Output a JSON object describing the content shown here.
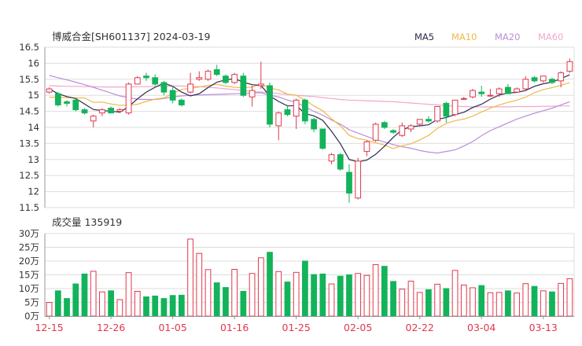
{
  "header": {
    "title": "博威合金[SH601137] 2024-03-19",
    "legend": [
      {
        "label": "MA5",
        "color": "#2b2b4d"
      },
      {
        "label": "MA10",
        "color": "#f0b84a"
      },
      {
        "label": "MA20",
        "color": "#b98fd8"
      },
      {
        "label": "MA60",
        "color": "#f2a6cf"
      }
    ]
  },
  "volume_panel": {
    "label": "成交量 135919"
  },
  "colors": {
    "up": "#e0384c",
    "down": "#13b35a",
    "grid": "#dddddd",
    "axis_text": "#333333",
    "date_text": "#e0384c"
  },
  "chart_data": [
    {
      "type": "candlestick",
      "name": "price",
      "ylim": [
        11.5,
        16.5
      ],
      "y_ticks": [
        "16.5",
        "16",
        "15.5",
        "15",
        "14.5",
        "14",
        "13.5",
        "13",
        "12.5",
        "12",
        "11.5"
      ],
      "x_ticks": [
        "12-15",
        "12-26",
        "01-05",
        "01-16",
        "01-25",
        "02-05",
        "02-22",
        "03-04",
        "03-13"
      ],
      "x_tick_index": [
        0,
        7,
        14,
        21,
        28,
        35,
        42,
        49,
        56
      ],
      "ohlc": [
        [
          15.1,
          15.25,
          15.05,
          15.2
        ],
        [
          15.05,
          15.1,
          14.65,
          14.7
        ],
        [
          14.8,
          14.85,
          14.65,
          14.75
        ],
        [
          14.85,
          14.9,
          14.5,
          14.55
        ],
        [
          14.55,
          14.6,
          14.4,
          14.45
        ],
        [
          14.2,
          14.4,
          14.0,
          14.35
        ],
        [
          14.45,
          14.6,
          14.35,
          14.55
        ],
        [
          14.6,
          14.65,
          14.45,
          14.45
        ],
        [
          14.5,
          14.6,
          14.45,
          14.55
        ],
        [
          14.45,
          15.4,
          14.4,
          15.35
        ],
        [
          15.35,
          15.6,
          15.35,
          15.55
        ],
        [
          15.6,
          15.7,
          15.45,
          15.55
        ],
        [
          15.55,
          15.65,
          15.3,
          15.35
        ],
        [
          15.4,
          15.45,
          15.0,
          15.1
        ],
        [
          15.15,
          15.3,
          14.75,
          14.85
        ],
        [
          14.85,
          14.9,
          14.65,
          14.7
        ],
        [
          15.1,
          15.7,
          15.05,
          15.35
        ],
        [
          15.5,
          15.75,
          15.45,
          15.55
        ],
        [
          15.5,
          15.8,
          15.45,
          15.75
        ],
        [
          15.8,
          15.95,
          15.6,
          15.65
        ],
        [
          15.6,
          15.65,
          15.35,
          15.4
        ],
        [
          15.4,
          15.7,
          15.35,
          15.65
        ],
        [
          15.6,
          15.7,
          14.95,
          15.0
        ],
        [
          14.95,
          15.3,
          14.65,
          15.15
        ],
        [
          15.3,
          16.05,
          15.2,
          15.35
        ],
        [
          15.3,
          15.4,
          14.0,
          14.1
        ],
        [
          14.05,
          14.5,
          13.6,
          14.45
        ],
        [
          14.55,
          14.7,
          14.35,
          14.4
        ],
        [
          14.35,
          14.9,
          13.95,
          14.85
        ],
        [
          14.85,
          14.9,
          14.1,
          14.2
        ],
        [
          14.25,
          14.3,
          13.85,
          13.95
        ],
        [
          13.95,
          13.95,
          13.3,
          13.35
        ],
        [
          12.95,
          13.2,
          12.85,
          13.15
        ],
        [
          13.15,
          13.2,
          12.65,
          12.7
        ],
        [
          12.6,
          12.85,
          11.65,
          11.95
        ],
        [
          11.8,
          13.05,
          11.75,
          12.95
        ],
        [
          13.25,
          13.6,
          13.1,
          13.55
        ],
        [
          13.6,
          14.15,
          13.55,
          14.1
        ],
        [
          14.15,
          14.2,
          13.95,
          14.0
        ],
        [
          13.9,
          13.95,
          13.8,
          13.85
        ],
        [
          13.75,
          14.15,
          13.7,
          14.05
        ],
        [
          13.95,
          14.1,
          13.85,
          14.05
        ],
        [
          14.1,
          14.25,
          14.05,
          14.25
        ],
        [
          14.25,
          14.35,
          14.15,
          14.2
        ],
        [
          14.2,
          14.65,
          14.15,
          14.65
        ],
        [
          14.75,
          14.8,
          14.15,
          14.35
        ],
        [
          14.4,
          14.85,
          14.35,
          14.85
        ],
        [
          14.9,
          14.95,
          14.85,
          14.9
        ],
        [
          14.95,
          15.2,
          14.9,
          15.15
        ],
        [
          15.1,
          15.3,
          14.95,
          15.05
        ],
        [
          15.0,
          15.2,
          14.95,
          15.0
        ],
        [
          15.05,
          15.25,
          14.95,
          15.2
        ],
        [
          15.25,
          15.35,
          15.05,
          15.05
        ],
        [
          15.1,
          15.25,
          15.1,
          15.2
        ],
        [
          15.2,
          15.6,
          15.15,
          15.5
        ],
        [
          15.55,
          15.6,
          15.4,
          15.45
        ],
        [
          15.45,
          15.6,
          15.4,
          15.6
        ],
        [
          15.5,
          15.55,
          15.35,
          15.4
        ],
        [
          15.45,
          15.75,
          15.25,
          15.7
        ],
        [
          15.75,
          16.15,
          15.7,
          16.05
        ]
      ],
      "ma5": [
        15.2,
        15.05,
        14.96,
        14.9,
        14.73,
        14.56,
        14.52,
        14.51,
        14.47,
        14.65,
        14.89,
        15.1,
        15.25,
        15.38,
        15.28,
        15.1,
        14.98,
        15.05,
        15.24,
        15.41,
        15.48,
        15.52,
        15.41,
        15.33,
        15.31,
        14.98,
        14.81,
        14.67,
        14.68,
        14.43,
        14.36,
        14.22,
        13.88,
        13.49,
        13.0,
        12.93,
        12.98,
        13.16,
        13.41,
        13.69,
        13.93,
        14.02,
        14.05,
        14.08,
        14.25,
        14.31,
        14.4,
        14.47,
        14.62,
        14.72,
        14.88,
        15.01,
        15.07,
        15.09,
        15.15,
        15.28,
        15.36,
        15.41,
        15.52,
        15.64
      ],
      "ma10": [
        14.94,
        14.94,
        14.93,
        14.92,
        14.92,
        14.78,
        14.79,
        14.73,
        14.69,
        14.69,
        14.72,
        14.81,
        14.88,
        14.92,
        15.06,
        15.18,
        15.22,
        15.26,
        15.31,
        15.34,
        15.29,
        15.25,
        15.23,
        15.26,
        15.35,
        15.23,
        15.17,
        15.04,
        15.0,
        14.85,
        14.67,
        14.52,
        14.27,
        14.05,
        13.75,
        13.65,
        13.6,
        13.52,
        13.45,
        13.34,
        13.43,
        13.49,
        13.61,
        13.75,
        13.97,
        14.12,
        14.21,
        14.26,
        14.35,
        14.48,
        14.6,
        14.7,
        14.78,
        14.85,
        14.94,
        15.08,
        15.18,
        15.24,
        15.31,
        15.4
      ],
      "ma20": [
        15.62,
        15.55,
        15.48,
        15.41,
        15.33,
        15.25,
        15.16,
        15.07,
        14.98,
        14.93,
        14.88,
        14.87,
        14.87,
        14.9,
        14.95,
        14.98,
        15.0,
        15.01,
        15.02,
        15.03,
        15.04,
        15.05,
        15.06,
        15.07,
        15.08,
        15.0,
        14.95,
        14.85,
        14.78,
        14.64,
        14.5,
        14.38,
        14.23,
        14.1,
        13.93,
        13.82,
        13.72,
        13.62,
        13.55,
        13.46,
        13.4,
        13.35,
        13.28,
        13.23,
        13.2,
        13.25,
        13.3,
        13.42,
        13.56,
        13.74,
        13.9,
        14.02,
        14.14,
        14.26,
        14.35,
        14.44,
        14.52,
        14.6,
        14.7,
        14.8
      ],
      "ma60": [
        15.3,
        15.29,
        15.28,
        15.28,
        15.27,
        15.27,
        15.26,
        15.26,
        15.26,
        15.26,
        15.27,
        15.27,
        15.28,
        15.28,
        15.29,
        15.29,
        15.28,
        15.27,
        15.25,
        15.23,
        15.2,
        15.18,
        15.15,
        15.12,
        15.1,
        15.08,
        15.06,
        15.03,
        15.0,
        14.98,
        14.96,
        14.93,
        14.9,
        14.87,
        14.85,
        14.84,
        14.83,
        14.82,
        14.81,
        14.8,
        14.78,
        14.76,
        14.74,
        14.72,
        14.7,
        14.68,
        14.66,
        14.65,
        14.64,
        14.64,
        14.64,
        14.64,
        14.64,
        14.65,
        14.65,
        14.65,
        14.66,
        14.66,
        14.67,
        14.67
      ]
    },
    {
      "type": "bar",
      "name": "volume",
      "ylim": [
        0,
        300000
      ],
      "y_ticks": [
        "30万",
        "25万",
        "20万",
        "15万",
        "10万",
        "5万",
        "0万"
      ],
      "volume": [
        50000,
        92000,
        64000,
        117000,
        153000,
        163000,
        88000,
        92000,
        60000,
        158000,
        90000,
        70000,
        73000,
        64000,
        75000,
        76000,
        280000,
        228000,
        169000,
        121000,
        104000,
        170000,
        90000,
        155000,
        212000,
        232000,
        162000,
        124000,
        159000,
        200000,
        151000,
        153000,
        117000,
        145000,
        150000,
        155000,
        148000,
        187000,
        181000,
        126000,
        98000,
        127000,
        86000,
        96000,
        116000,
        100000,
        166000,
        113000,
        103000,
        111000,
        85000,
        86000,
        92000,
        84000,
        118000,
        108000,
        92000,
        88000,
        119000,
        136000
      ]
    }
  ]
}
